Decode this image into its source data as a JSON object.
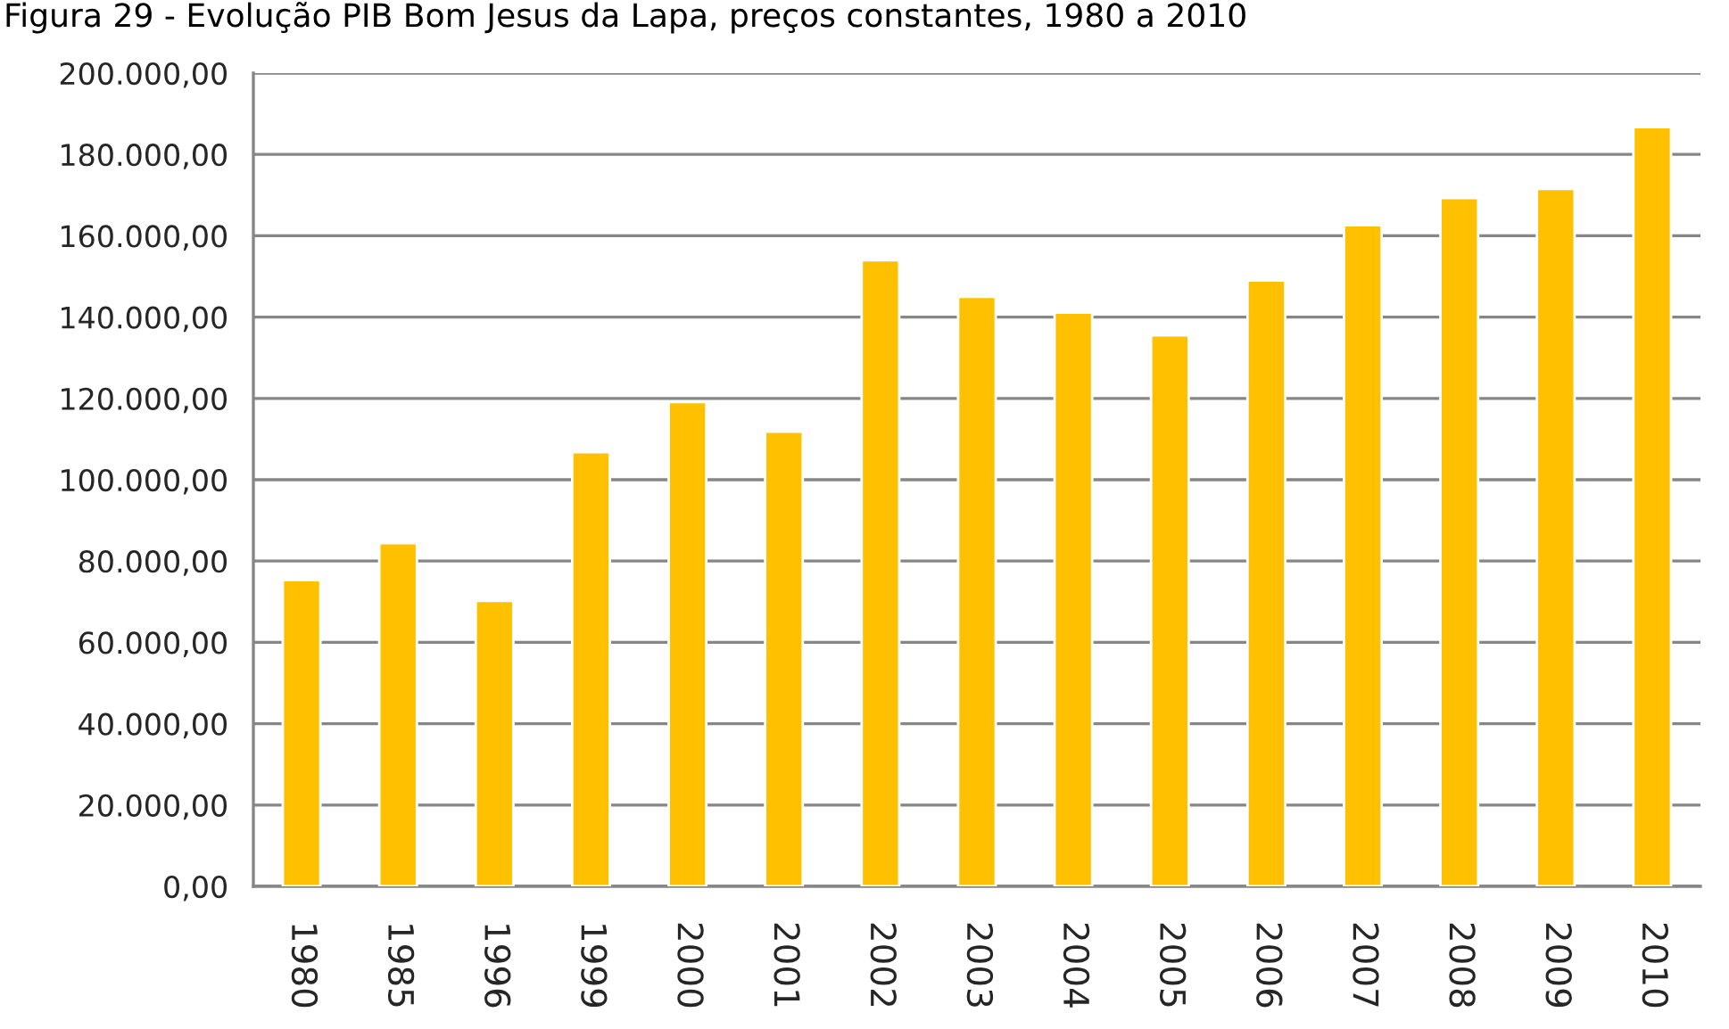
{
  "chart_data": {
    "type": "bar",
    "title": "Figura 29 - Evolução PIB Bom Jesus da Lapa, preços constantes, 1980 a 2010",
    "categories": [
      "1980",
      "1985",
      "1996",
      "1999",
      "2000",
      "2001",
      "2002",
      "2003",
      "2004",
      "2005",
      "2006",
      "2007",
      "2008",
      "2009",
      "2010"
    ],
    "values": [
      75300,
      84400,
      70200,
      106800,
      119100,
      111800,
      154000,
      145000,
      141100,
      135500,
      149000,
      162600,
      169300,
      171500,
      186700
    ],
    "color": "#ffc000",
    "ylim": [
      0,
      200000
    ],
    "yticks": [
      {
        "value": 0,
        "label": "0,00"
      },
      {
        "value": 20000,
        "label": "20.000,00"
      },
      {
        "value": 40000,
        "label": "40.000,00"
      },
      {
        "value": 60000,
        "label": "60.000,00"
      },
      {
        "value": 80000,
        "label": "80.000,00"
      },
      {
        "value": 100000,
        "label": "100.000,00"
      },
      {
        "value": 120000,
        "label": "120.000,00"
      },
      {
        "value": 140000,
        "label": "140.000,00"
      },
      {
        "value": 160000,
        "label": "160.000,00"
      },
      {
        "value": 180000,
        "label": "180.000,00"
      },
      {
        "value": 200000,
        "label": "200.000,00"
      }
    ],
    "grid": "y"
  }
}
